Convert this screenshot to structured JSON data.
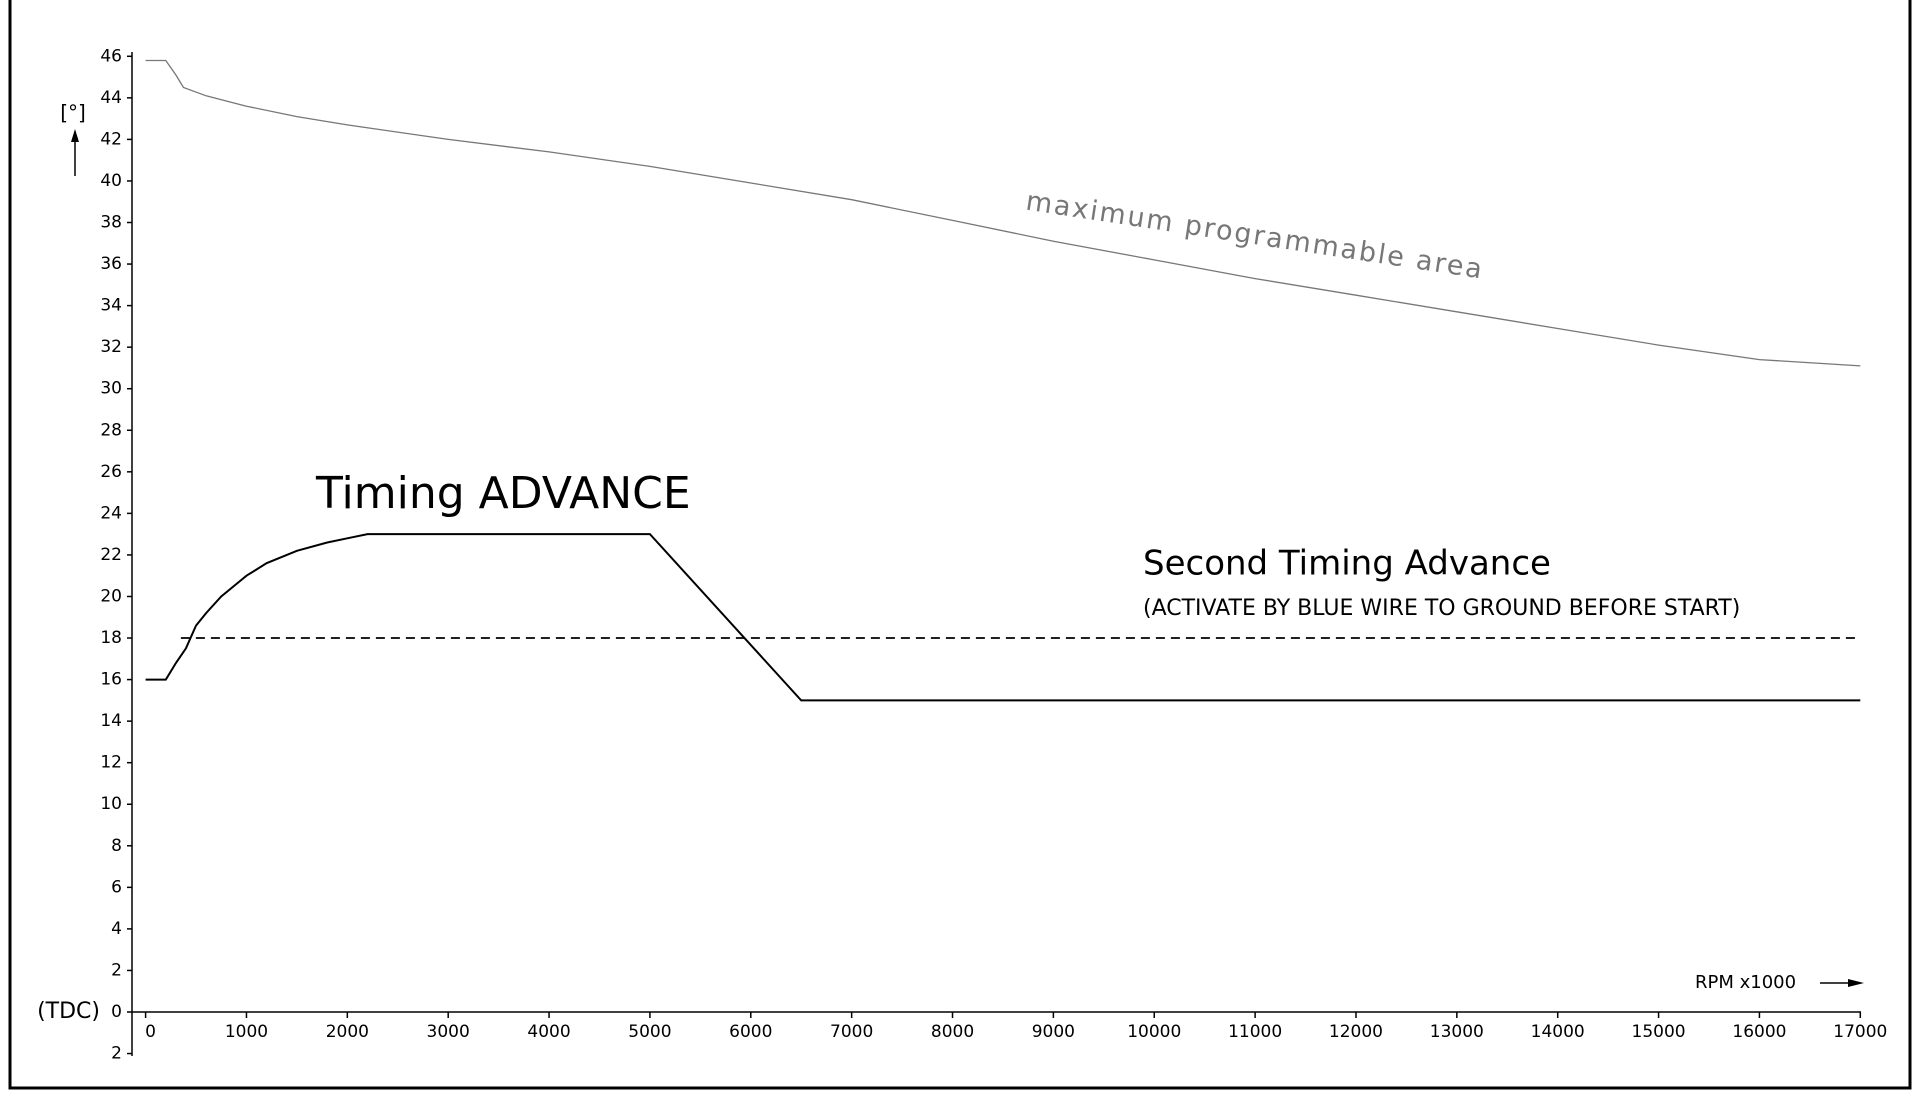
{
  "chart_data": {
    "type": "line",
    "y_label": "[°]",
    "x_label": "RPM x1000",
    "zero_label": "(TDC)",
    "xlim": [
      0,
      17000
    ],
    "xticks": [
      0,
      1000,
      2000,
      3000,
      4000,
      5000,
      6000,
      7000,
      8000,
      9000,
      10000,
      11000,
      12000,
      13000,
      14000,
      15000,
      16000,
      17000
    ],
    "ylim": [
      -2,
      46
    ],
    "yticks": [
      {
        "value": -2,
        "label": "2"
      },
      0,
      2,
      4,
      6,
      8,
      10,
      12,
      14,
      16,
      18,
      20,
      22,
      24,
      26,
      28,
      30,
      32,
      34,
      36,
      38,
      40,
      42,
      44,
      46
    ],
    "series": [
      {
        "name": "maximum programmable area",
        "color": "#777777",
        "style": "solid",
        "x": [
          0,
          200,
          300,
          376,
          600,
          1000,
          1500,
          2000,
          3000,
          4000,
          5000,
          6000,
          7000,
          8000,
          9000,
          10000,
          11000,
          12000,
          13000,
          14000,
          15000,
          16000,
          17000
        ],
        "values": [
          45.8,
          45.8,
          45.1,
          44.5,
          44.1,
          43.6,
          43.1,
          42.7,
          42.0,
          41.4,
          40.7,
          39.9,
          39.1,
          38.1,
          37.1,
          36.2,
          35.3,
          34.5,
          33.7,
          32.9,
          32.1,
          31.4,
          31.1
        ]
      },
      {
        "name": "Timing ADVANCE",
        "color": "#000000",
        "style": "solid",
        "x": [
          0,
          200,
          300,
          400,
          500,
          600,
          750,
          900,
          1000,
          1200,
          1500,
          1800,
          2000,
          2200,
          5000,
          6500,
          17000
        ],
        "values": [
          16,
          16,
          16.8,
          17.5,
          18.6,
          19.2,
          20.0,
          20.6,
          21.0,
          21.6,
          22.2,
          22.6,
          22.8,
          23,
          23,
          15,
          15
        ]
      },
      {
        "name": "Second Timing Advance",
        "color": "#000000",
        "style": "dashed",
        "x": [
          350,
          17000
        ],
        "values": [
          18,
          18
        ]
      }
    ],
    "annotations": [
      "(ACTIVATE BY BLUE WIRE TO GROUND BEFORE START)"
    ]
  }
}
